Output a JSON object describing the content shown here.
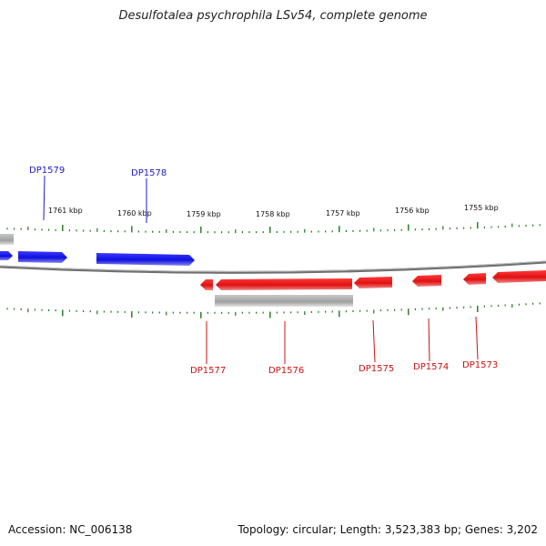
{
  "title": "Desulfotalea psychrophila LSv54, complete genome",
  "footer": {
    "accession": "Accession: NC_006138",
    "summary": "Topology: circular; Length: 3,523,383 bp; Genes: 3,202"
  },
  "colors": {
    "forward": "#1010e0",
    "reverse": "#e01010",
    "other": "#a0a0a0",
    "tick": "#1a7a1a",
    "backbone": "#7a7a7a"
  },
  "scale": {
    "labels": [
      "1761 kbp",
      "1760 kbp",
      "1759 kbp",
      "1758 kbp",
      "1757 kbp",
      "1756 kbp",
      "1755 kbp"
    ]
  },
  "genes": {
    "forward": [
      "DP1579",
      "DP1578"
    ],
    "reverse": [
      "DP1577",
      "DP1576",
      "DP1575",
      "DP1574",
      "DP1573"
    ]
  }
}
